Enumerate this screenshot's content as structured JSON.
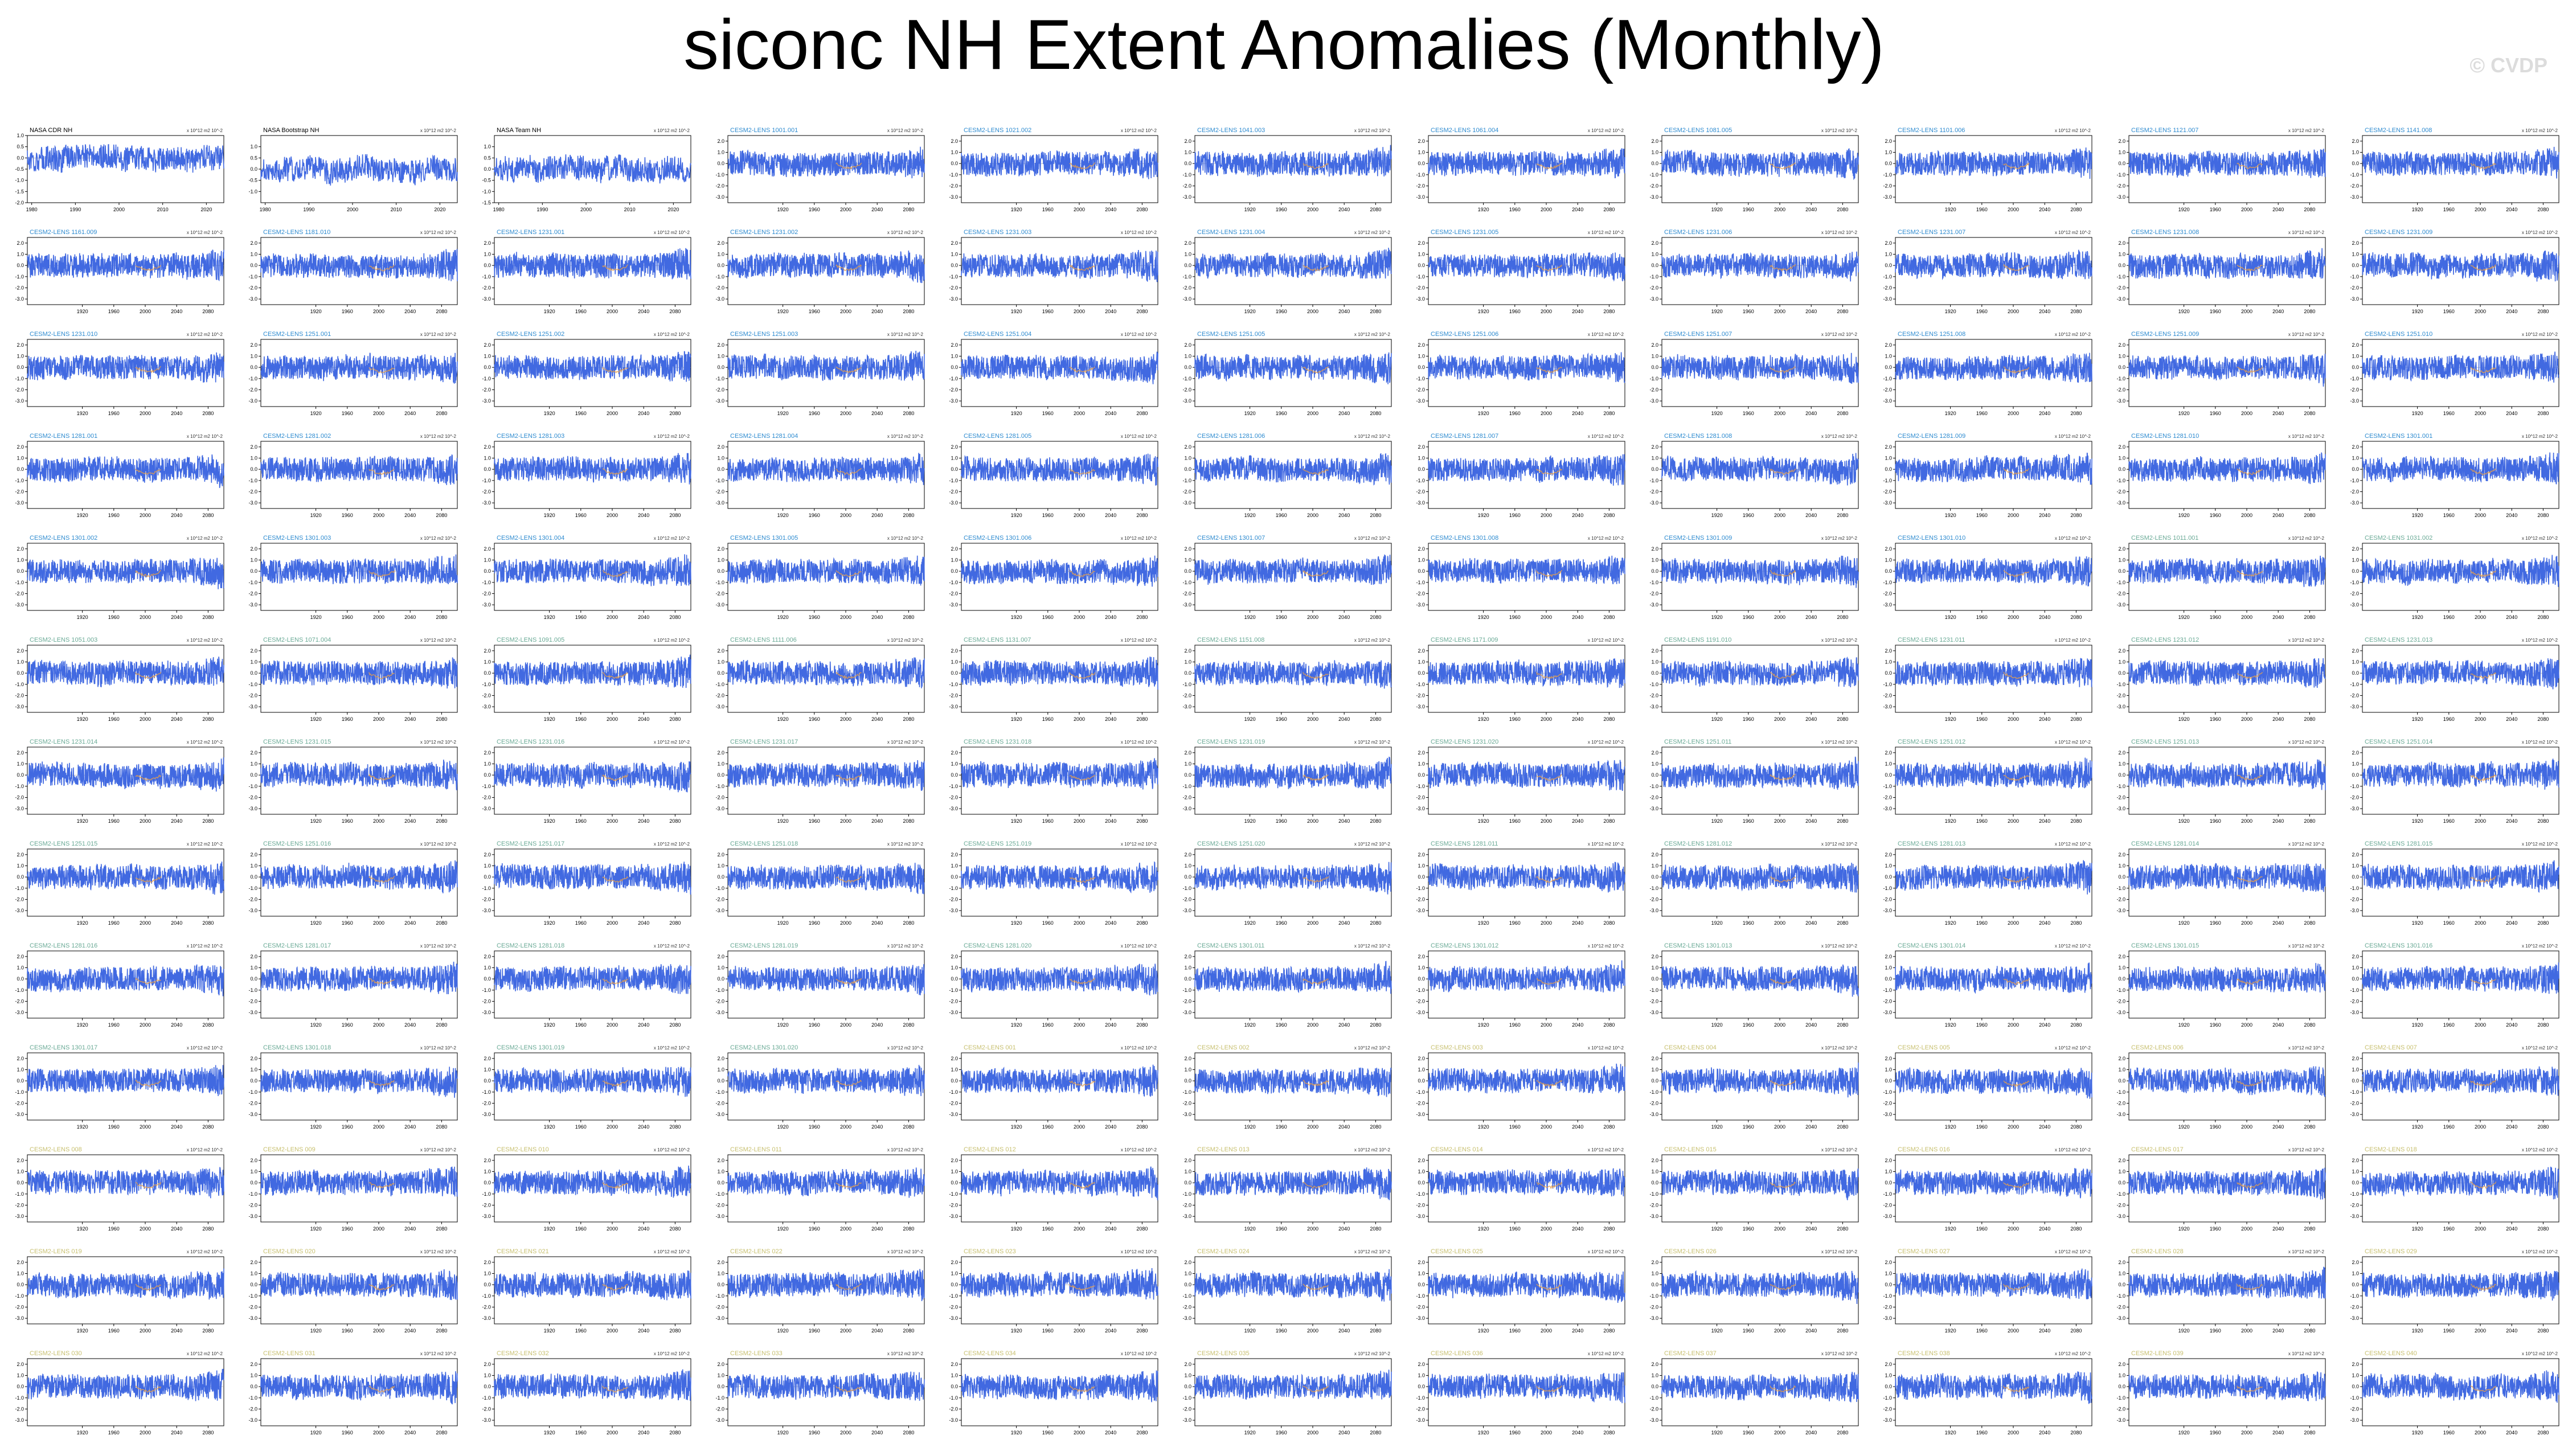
{
  "title": "siconc NH Extent Anomalies (Monthly)",
  "watermark": "© CVDP",
  "units_label": "x 10^12 m2 10^-2",
  "colors": {
    "series_line": "#4169e1",
    "ensemble_mean": "#e8a04a",
    "label_obs": "#000000",
    "label_lens_early": "#2e8bd0",
    "label_lens_mid": "#6aaa96",
    "label_lens_late": "#c8c070"
  },
  "chart_data": {
    "type": "line",
    "layout": "small-multiples-11-columns",
    "panels": [
      {
        "name": "NASA CDR NH",
        "group": "obs",
        "xlim": [
          1979,
          2024
        ],
        "xticks": [
          "1980",
          "1990",
          "2000",
          "2010",
          "2020"
        ],
        "yticks": [
          "1.0",
          "0.5",
          "0.0",
          "-0.5",
          "-1.0",
          "-1.5",
          "-2.0"
        ],
        "ylim": [
          -2.0,
          1.0
        ]
      },
      {
        "name": "NASA Bootstrap NH",
        "group": "obs",
        "xlim": [
          1979,
          2024
        ],
        "xticks": [
          "1980",
          "1990",
          "2000",
          "2010",
          "2020"
        ],
        "yticks": [
          "1.0",
          "0.5",
          "0.0",
          "-0.5",
          "-1.0"
        ],
        "ylim": [
          -1.5,
          1.5
        ]
      },
      {
        "name": "NASA Team NH",
        "group": "obs",
        "xlim": [
          1979,
          2024
        ],
        "xticks": [
          "1980",
          "1990",
          "2000",
          "2010",
          "2020"
        ],
        "yticks": [
          "1.0",
          "0.5",
          "0.0",
          "-0.5",
          "-1.0",
          "-1.5"
        ],
        "ylim": [
          -1.5,
          1.5
        ]
      },
      {
        "name": "CESM2-LENS 1001.001",
        "group": "early"
      },
      {
        "name": "CESM2-LENS 1021.002",
        "group": "early"
      },
      {
        "name": "CESM2-LENS 1041.003",
        "group": "early"
      },
      {
        "name": "CESM2-LENS 1061.004",
        "group": "early"
      },
      {
        "name": "CESM2-LENS 1081.005",
        "group": "early"
      },
      {
        "name": "CESM2-LENS 1101.006",
        "group": "early"
      },
      {
        "name": "CESM2-LENS 1121.007",
        "group": "early"
      },
      {
        "name": "CESM2-LENS 1141.008",
        "group": "early"
      },
      {
        "name": "CESM2-LENS 1161.009",
        "group": "early"
      },
      {
        "name": "CESM2-LENS 1181.010",
        "group": "early"
      },
      {
        "name": "CESM2-LENS 1231.001",
        "group": "early"
      },
      {
        "name": "CESM2-LENS 1231.002",
        "group": "early"
      },
      {
        "name": "CESM2-LENS 1231.003",
        "group": "early"
      },
      {
        "name": "CESM2-LENS 1231.004",
        "group": "early"
      },
      {
        "name": "CESM2-LENS 1231.005",
        "group": "early"
      },
      {
        "name": "CESM2-LENS 1231.006",
        "group": "early"
      },
      {
        "name": "CESM2-LENS 1231.007",
        "group": "early"
      },
      {
        "name": "CESM2-LENS 1231.008",
        "group": "early"
      },
      {
        "name": "CESM2-LENS 1231.009",
        "group": "early"
      },
      {
        "name": "CESM2-LENS 1231.010",
        "group": "early"
      },
      {
        "name": "CESM2-LENS 1251.001",
        "group": "early"
      },
      {
        "name": "CESM2-LENS 1251.002",
        "group": "early"
      },
      {
        "name": "CESM2-LENS 1251.003",
        "group": "early"
      },
      {
        "name": "CESM2-LENS 1251.004",
        "group": "early"
      },
      {
        "name": "CESM2-LENS 1251.005",
        "group": "early"
      },
      {
        "name": "CESM2-LENS 1251.006",
        "group": "early"
      },
      {
        "name": "CESM2-LENS 1251.007",
        "group": "early"
      },
      {
        "name": "CESM2-LENS 1251.008",
        "group": "early"
      },
      {
        "name": "CESM2-LENS 1251.009",
        "group": "early"
      },
      {
        "name": "CESM2-LENS 1251.010",
        "group": "early"
      },
      {
        "name": "CESM2-LENS 1281.001",
        "group": "early"
      },
      {
        "name": "CESM2-LENS 1281.002",
        "group": "early"
      },
      {
        "name": "CESM2-LENS 1281.003",
        "group": "early"
      },
      {
        "name": "CESM2-LENS 1281.004",
        "group": "early"
      },
      {
        "name": "CESM2-LENS 1281.005",
        "group": "early"
      },
      {
        "name": "CESM2-LENS 1281.006",
        "group": "early"
      },
      {
        "name": "CESM2-LENS 1281.007",
        "group": "early"
      },
      {
        "name": "CESM2-LENS 1281.008",
        "group": "early"
      },
      {
        "name": "CESM2-LENS 1281.009",
        "group": "early"
      },
      {
        "name": "CESM2-LENS 1281.010",
        "group": "early"
      },
      {
        "name": "CESM2-LENS 1301.001",
        "group": "early"
      },
      {
        "name": "CESM2-LENS 1301.002",
        "group": "early"
      },
      {
        "name": "CESM2-LENS 1301.003",
        "group": "early"
      },
      {
        "name": "CESM2-LENS 1301.004",
        "group": "early"
      },
      {
        "name": "CESM2-LENS 1301.005",
        "group": "early"
      },
      {
        "name": "CESM2-LENS 1301.006",
        "group": "early"
      },
      {
        "name": "CESM2-LENS 1301.007",
        "group": "early"
      },
      {
        "name": "CESM2-LENS 1301.008",
        "group": "early"
      },
      {
        "name": "CESM2-LENS 1301.009",
        "group": "early"
      },
      {
        "name": "CESM2-LENS 1301.010",
        "group": "early"
      },
      {
        "name": "CESM2-LENS 1011.001",
        "group": "mid"
      },
      {
        "name": "CESM2-LENS 1031.002",
        "group": "mid"
      },
      {
        "name": "CESM2-LENS 1051.003",
        "group": "mid"
      },
      {
        "name": "CESM2-LENS 1071.004",
        "group": "mid"
      },
      {
        "name": "CESM2-LENS 1091.005",
        "group": "mid"
      },
      {
        "name": "CESM2-LENS 1111.006",
        "group": "mid"
      },
      {
        "name": "CESM2-LENS 1131.007",
        "group": "mid"
      },
      {
        "name": "CESM2-LENS 1151.008",
        "group": "mid"
      },
      {
        "name": "CESM2-LENS 1171.009",
        "group": "mid"
      },
      {
        "name": "CESM2-LENS 1191.010",
        "group": "mid"
      },
      {
        "name": "CESM2-LENS 1231.011",
        "group": "mid"
      },
      {
        "name": "CESM2-LENS 1231.012",
        "group": "mid"
      },
      {
        "name": "CESM2-LENS 1231.013",
        "group": "mid"
      },
      {
        "name": "CESM2-LENS 1231.014",
        "group": "mid"
      },
      {
        "name": "CESM2-LENS 1231.015",
        "group": "mid"
      },
      {
        "name": "CESM2-LENS 1231.016",
        "group": "mid"
      },
      {
        "name": "CESM2-LENS 1231.017",
        "group": "mid"
      },
      {
        "name": "CESM2-LENS 1231.018",
        "group": "mid"
      },
      {
        "name": "CESM2-LENS 1231.019",
        "group": "mid"
      },
      {
        "name": "CESM2-LENS 1231.020",
        "group": "mid"
      },
      {
        "name": "CESM2-LENS 1251.011",
        "group": "mid"
      },
      {
        "name": "CESM2-LENS 1251.012",
        "group": "mid"
      },
      {
        "name": "CESM2-LENS 1251.013",
        "group": "mid"
      },
      {
        "name": "CESM2-LENS 1251.014",
        "group": "mid"
      },
      {
        "name": "CESM2-LENS 1251.015",
        "group": "mid"
      },
      {
        "name": "CESM2-LENS 1251.016",
        "group": "mid"
      },
      {
        "name": "CESM2-LENS 1251.017",
        "group": "mid"
      },
      {
        "name": "CESM2-LENS 1251.018",
        "group": "mid"
      },
      {
        "name": "CESM2-LENS 1251.019",
        "group": "mid"
      },
      {
        "name": "CESM2-LENS 1251.020",
        "group": "mid"
      },
      {
        "name": "CESM2-LENS 1281.011",
        "group": "mid"
      },
      {
        "name": "CESM2-LENS 1281.012",
        "group": "mid"
      },
      {
        "name": "CESM2-LENS 1281.013",
        "group": "mid"
      },
      {
        "name": "CESM2-LENS 1281.014",
        "group": "mid"
      },
      {
        "name": "CESM2-LENS 1281.015",
        "group": "mid"
      },
      {
        "name": "CESM2-LENS 1281.016",
        "group": "mid"
      },
      {
        "name": "CESM2-LENS 1281.017",
        "group": "mid"
      },
      {
        "name": "CESM2-LENS 1281.018",
        "group": "mid"
      },
      {
        "name": "CESM2-LENS 1281.019",
        "group": "mid"
      },
      {
        "name": "CESM2-LENS 1281.020",
        "group": "mid"
      },
      {
        "name": "CESM2-LENS 1301.011",
        "group": "mid"
      },
      {
        "name": "CESM2-LENS 1301.012",
        "group": "mid"
      },
      {
        "name": "CESM2-LENS 1301.013",
        "group": "mid"
      },
      {
        "name": "CESM2-LENS 1301.014",
        "group": "mid"
      },
      {
        "name": "CESM2-LENS 1301.015",
        "group": "mid"
      },
      {
        "name": "CESM2-LENS 1301.016",
        "group": "mid"
      },
      {
        "name": "CESM2-LENS 1301.017",
        "group": "mid"
      },
      {
        "name": "CESM2-LENS 1301.018",
        "group": "mid"
      },
      {
        "name": "CESM2-LENS 1301.019",
        "group": "mid"
      },
      {
        "name": "CESM2-LENS 1301.020",
        "group": "mid"
      },
      {
        "name": "CESM2-LENS 001",
        "group": "late"
      },
      {
        "name": "CESM2-LENS 002",
        "group": "late"
      },
      {
        "name": "CESM2-LENS 003",
        "group": "late"
      },
      {
        "name": "CESM2-LENS 004",
        "group": "late"
      },
      {
        "name": "CESM2-LENS 005",
        "group": "late"
      },
      {
        "name": "CESM2-LENS 006",
        "group": "late"
      },
      {
        "name": "CESM2-LENS 007",
        "group": "late"
      },
      {
        "name": "CESM2-LENS 008",
        "group": "late"
      },
      {
        "name": "CESM2-LENS 009",
        "group": "late"
      },
      {
        "name": "CESM2-LENS 010",
        "group": "late"
      },
      {
        "name": "CESM2-LENS 011",
        "group": "late"
      },
      {
        "name": "CESM2-LENS 012",
        "group": "late"
      },
      {
        "name": "CESM2-LENS 013",
        "group": "late"
      },
      {
        "name": "CESM2-LENS 014",
        "group": "late"
      },
      {
        "name": "CESM2-LENS 015",
        "group": "late"
      },
      {
        "name": "CESM2-LENS 016",
        "group": "late"
      },
      {
        "name": "CESM2-LENS 017",
        "group": "late"
      },
      {
        "name": "CESM2-LENS 018",
        "group": "late"
      },
      {
        "name": "CESM2-LENS 019",
        "group": "late"
      },
      {
        "name": "CESM2-LENS 020",
        "group": "late"
      },
      {
        "name": "CESM2-LENS 021",
        "group": "late"
      },
      {
        "name": "CESM2-LENS 022",
        "group": "late"
      },
      {
        "name": "CESM2-LENS 023",
        "group": "late"
      },
      {
        "name": "CESM2-LENS 024",
        "group": "late"
      },
      {
        "name": "CESM2-LENS 025",
        "group": "late"
      },
      {
        "name": "CESM2-LENS 026",
        "group": "late"
      },
      {
        "name": "CESM2-LENS 027",
        "group": "late"
      },
      {
        "name": "CESM2-LENS 028",
        "group": "late"
      },
      {
        "name": "CESM2-LENS 029",
        "group": "late"
      },
      {
        "name": "CESM2-LENS 030",
        "group": "late"
      },
      {
        "name": "CESM2-LENS 031",
        "group": "late"
      },
      {
        "name": "CESM2-LENS 032",
        "group": "late"
      },
      {
        "name": "CESM2-LENS 033",
        "group": "late"
      },
      {
        "name": "CESM2-LENS 034",
        "group": "late"
      },
      {
        "name": "CESM2-LENS 035",
        "group": "late"
      },
      {
        "name": "CESM2-LENS 036",
        "group": "late"
      },
      {
        "name": "CESM2-LENS 037",
        "group": "late"
      },
      {
        "name": "CESM2-LENS 038",
        "group": "late"
      },
      {
        "name": "CESM2-LENS 039",
        "group": "late"
      },
      {
        "name": "CESM2-LENS 040",
        "group": "late"
      }
    ],
    "model_defaults": {
      "xlim": [
        1850,
        2100
      ],
      "xticks": [
        "1920",
        "1960",
        "2000",
        "2040",
        "2080"
      ],
      "yticks": [
        "2.0",
        "1.0",
        "0.0",
        "-1.0",
        "-2.0",
        "-3.0"
      ],
      "ylim": [
        -3.5,
        2.5
      ]
    },
    "xlabel": "",
    "ylabel": ""
  }
}
